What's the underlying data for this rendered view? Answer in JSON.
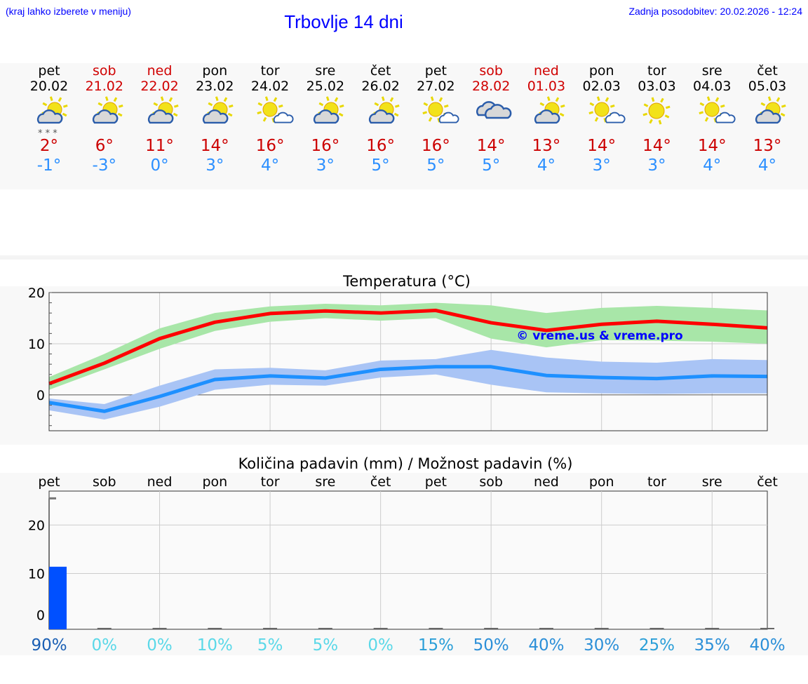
{
  "header": {
    "hint": "(kraj lahko izberete v meniju)",
    "title": "Trbovlje 14 dni",
    "updated": "Zadnja posodobitev: 20.02.2026 - 12:24"
  },
  "days": [
    {
      "name": "pet",
      "date": "20.02",
      "weekend": false,
      "icon": "cloud-sun-snow-icon",
      "max": "2°",
      "min": "-1°"
    },
    {
      "name": "sob",
      "date": "21.02",
      "weekend": true,
      "icon": "cloud-sun-icon",
      "max": "6°",
      "min": "-3°"
    },
    {
      "name": "ned",
      "date": "22.02",
      "weekend": true,
      "icon": "cloud-sun-icon",
      "max": "11°",
      "min": "0°"
    },
    {
      "name": "pon",
      "date": "23.02",
      "weekend": false,
      "icon": "cloud-sun-icon",
      "max": "14°",
      "min": "3°"
    },
    {
      "name": "tor",
      "date": "24.02",
      "weekend": false,
      "icon": "sun-small-cloud-icon",
      "max": "16°",
      "min": "4°"
    },
    {
      "name": "sre",
      "date": "25.02",
      "weekend": false,
      "icon": "cloud-sun-icon",
      "max": "16°",
      "min": "3°"
    },
    {
      "name": "čet",
      "date": "26.02",
      "weekend": false,
      "icon": "cloud-sun-icon",
      "max": "16°",
      "min": "5°"
    },
    {
      "name": "pet",
      "date": "27.02",
      "weekend": false,
      "icon": "sun-small-cloud-icon",
      "max": "16°",
      "min": "5°"
    },
    {
      "name": "sob",
      "date": "28.02",
      "weekend": true,
      "icon": "cloudy-icon",
      "max": "14°",
      "min": "5°"
    },
    {
      "name": "ned",
      "date": "01.03",
      "weekend": true,
      "icon": "cloud-sun-icon",
      "max": "13°",
      "min": "4°"
    },
    {
      "name": "pon",
      "date": "02.03",
      "weekend": false,
      "icon": "sun-small-cloud-icon",
      "max": "14°",
      "min": "3°"
    },
    {
      "name": "tor",
      "date": "03.03",
      "weekend": false,
      "icon": "sun-icon",
      "max": "14°",
      "min": "3°"
    },
    {
      "name": "sre",
      "date": "04.03",
      "weekend": false,
      "icon": "sun-small-cloud-icon",
      "max": "14°",
      "min": "4°"
    },
    {
      "name": "čet",
      "date": "05.03",
      "weekend": false,
      "icon": "cloud-sun-icon",
      "max": "13°",
      "min": "4°"
    }
  ],
  "colors": {
    "max": "#ff0000",
    "max_band": "#a8e6a8",
    "min": "#1e90ff",
    "min_band": "#a9c4f5",
    "bar": "#0050ff"
  },
  "chart_data": [
    {
      "type": "line",
      "title": "Temperatura (°C)",
      "ylim": [
        -7,
        20
      ],
      "yticks": [
        "20",
        "10",
        "0"
      ],
      "watermark": "© vreme.us & vreme.pro",
      "x": [
        "20.02",
        "21.02",
        "22.02",
        "23.02",
        "24.02",
        "25.02",
        "26.02",
        "27.02",
        "28.02",
        "01.03",
        "02.03",
        "03.03",
        "04.03",
        "05.03"
      ],
      "series": [
        {
          "name": "max",
          "values": [
            2.2,
            6.2,
            11,
            14.2,
            15.9,
            16.4,
            16,
            16.5,
            14.1,
            12.6,
            13.8,
            14.4,
            13.8,
            13.1
          ],
          "upper": [
            3.5,
            8,
            13,
            16,
            17.3,
            17.8,
            17.5,
            18,
            17.5,
            16,
            17,
            17.4,
            17,
            16.5
          ],
          "lower": [
            1,
            5,
            9,
            12.5,
            14.3,
            15,
            14.5,
            15,
            11,
            9.3,
            10.7,
            10.6,
            10.4,
            10
          ]
        },
        {
          "name": "min",
          "values": [
            -1.5,
            -3.2,
            -0.3,
            3,
            3.7,
            3.3,
            5,
            5.5,
            5.5,
            3.8,
            3.4,
            3.2,
            3.7,
            3.6
          ],
          "upper": [
            -0.7,
            -1.8,
            1.8,
            5,
            5.3,
            4.8,
            6.7,
            7,
            8.8,
            7.3,
            6.5,
            6.3,
            7,
            6.8
          ],
          "lower": [
            -3,
            -4.8,
            -2.3,
            1,
            2,
            1.8,
            3.4,
            4,
            2,
            0.5,
            0.3,
            0.2,
            0.3,
            0.3
          ]
        }
      ]
    },
    {
      "type": "bar",
      "title": "Količina padavin (mm) / Možnost padavin (%)",
      "ylim": [
        -1.5,
        27
      ],
      "yticks": [
        "20",
        "10",
        "0"
      ],
      "categories": [
        "pet",
        "sob",
        "ned",
        "pon",
        "tor",
        "sre",
        "čet",
        "pet",
        "sob",
        "ned",
        "pon",
        "tor",
        "sre",
        "čet"
      ],
      "values": [
        11.4,
        0,
        0,
        0,
        0,
        0,
        0,
        0,
        0,
        0,
        0,
        0,
        0,
        0
      ],
      "max_marker": 25.5,
      "probability": [
        "90%",
        "0%",
        "0%",
        "10%",
        "5%",
        "5%",
        "0%",
        "15%",
        "50%",
        "40%",
        "30%",
        "25%",
        "35%",
        "40%"
      ],
      "probability_colors": [
        "#1a5fb4",
        "#5ad8e8",
        "#5ad8e8",
        "#5ad8e8",
        "#5ad8e8",
        "#5ad8e8",
        "#5ad8e8",
        "#2b9fd8",
        "#2b8fd8",
        "#2b8fd8",
        "#2b8fd8",
        "#2b9fd8",
        "#2b8fd8",
        "#2b8fd8"
      ]
    }
  ]
}
